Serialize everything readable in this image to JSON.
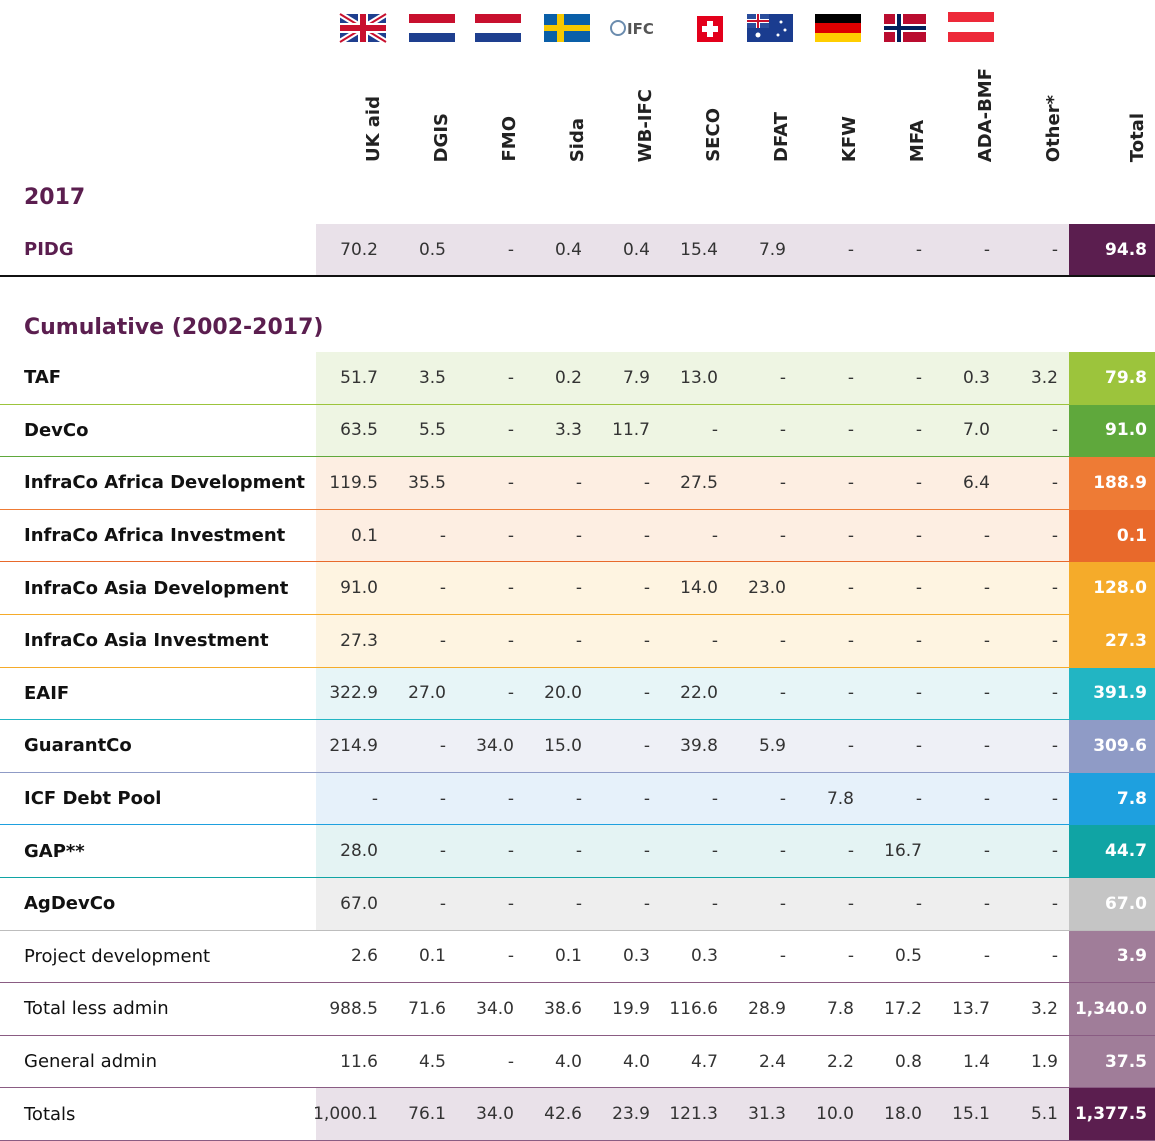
{
  "logo": "IFC",
  "columns": [
    "UK aid",
    "DGIS",
    "FMO",
    "Sida",
    "WB-IFC",
    "SECO",
    "DFAT",
    "KFW",
    "MFA",
    "ADA-BMF",
    "Other*",
    "Total"
  ],
  "sections": [
    {
      "title": "2017",
      "rows": [
        {
          "label": "PIDG",
          "values": [
            "70.2",
            "0.5",
            "-",
            "0.4",
            "0.4",
            "15.4",
            "7.9",
            "-",
            "-",
            "-",
            "-",
            "94.8"
          ]
        }
      ]
    },
    {
      "title": "Cumulative (2002-2017)",
      "rows": [
        {
          "label": "TAF",
          "values": [
            "51.7",
            "3.5",
            "-",
            "0.2",
            "7.9",
            "13.0",
            "-",
            "-",
            "-",
            "0.3",
            "3.2",
            "79.8"
          ]
        },
        {
          "label": "DevCo",
          "values": [
            "63.5",
            "5.5",
            "-",
            "3.3",
            "11.7",
            "-",
            "-",
            "-",
            "-",
            "7.0",
            "-",
            "91.0"
          ]
        },
        {
          "label": "InfraCo Africa Development",
          "values": [
            "119.5",
            "35.5",
            "-",
            "-",
            "-",
            "27.5",
            "-",
            "-",
            "-",
            "6.4",
            "-",
            "188.9"
          ]
        },
        {
          "label": "InfraCo Africa Investment",
          "values": [
            "0.1",
            "-",
            "-",
            "-",
            "-",
            "-",
            "-",
            "-",
            "-",
            "-",
            "-",
            "0.1"
          ]
        },
        {
          "label": "InfraCo Asia Development",
          "values": [
            "91.0",
            "-",
            "-",
            "-",
            "-",
            "14.0",
            "23.0",
            "-",
            "-",
            "-",
            "-",
            "128.0"
          ]
        },
        {
          "label": "InfraCo Asia Investment",
          "values": [
            "27.3",
            "-",
            "-",
            "-",
            "-",
            "-",
            "-",
            "-",
            "-",
            "-",
            "-",
            "27.3"
          ]
        },
        {
          "label": "EAIF",
          "values": [
            "322.9",
            "27.0",
            "-",
            "20.0",
            "-",
            "22.0",
            "-",
            "-",
            "-",
            "-",
            "-",
            "391.9"
          ]
        },
        {
          "label": "GuarantCo",
          "values": [
            "214.9",
            "-",
            "34.0",
            "15.0",
            "-",
            "39.8",
            "5.9",
            "-",
            "-",
            "-",
            "-",
            "309.6"
          ]
        },
        {
          "label": "ICF Debt Pool",
          "values": [
            "-",
            "-",
            "-",
            "-",
            "-",
            "-",
            "-",
            "7.8",
            "-",
            "-",
            "-",
            "7.8"
          ]
        },
        {
          "label": "GAP**",
          "values": [
            "28.0",
            "-",
            "-",
            "-",
            "-",
            "-",
            "-",
            "-",
            "16.7",
            "-",
            "-",
            "44.7"
          ]
        },
        {
          "label": "AgDevCo",
          "values": [
            "67.0",
            "-",
            "-",
            "-",
            "-",
            "-",
            "-",
            "-",
            "-",
            "-",
            "-",
            "67.0"
          ]
        },
        {
          "label": "Project development",
          "values": [
            "2.6",
            "0.1",
            "-",
            "0.1",
            "0.3",
            "0.3",
            "-",
            "-",
            "0.5",
            "-",
            "-",
            "3.9"
          ]
        },
        {
          "label": "Total less admin",
          "values": [
            "988.5",
            "71.6",
            "34.0",
            "38.6",
            "19.9",
            "116.6",
            "28.9",
            "7.8",
            "17.2",
            "13.7",
            "3.2",
            "1,340.0"
          ]
        },
        {
          "label": "General admin",
          "values": [
            "11.6",
            "4.5",
            "-",
            "4.0",
            "4.0",
            "4.7",
            "2.4",
            "2.2",
            "0.8",
            "1.4",
            "1.9",
            "37.5"
          ]
        },
        {
          "label": "Totals",
          "values": [
            "1,000.1",
            "76.1",
            "34.0",
            "42.6",
            "23.9",
            "121.3",
            "31.3",
            "10.0",
            "18.0",
            "15.1",
            "5.1",
            "1,377.5"
          ]
        }
      ]
    }
  ]
}
